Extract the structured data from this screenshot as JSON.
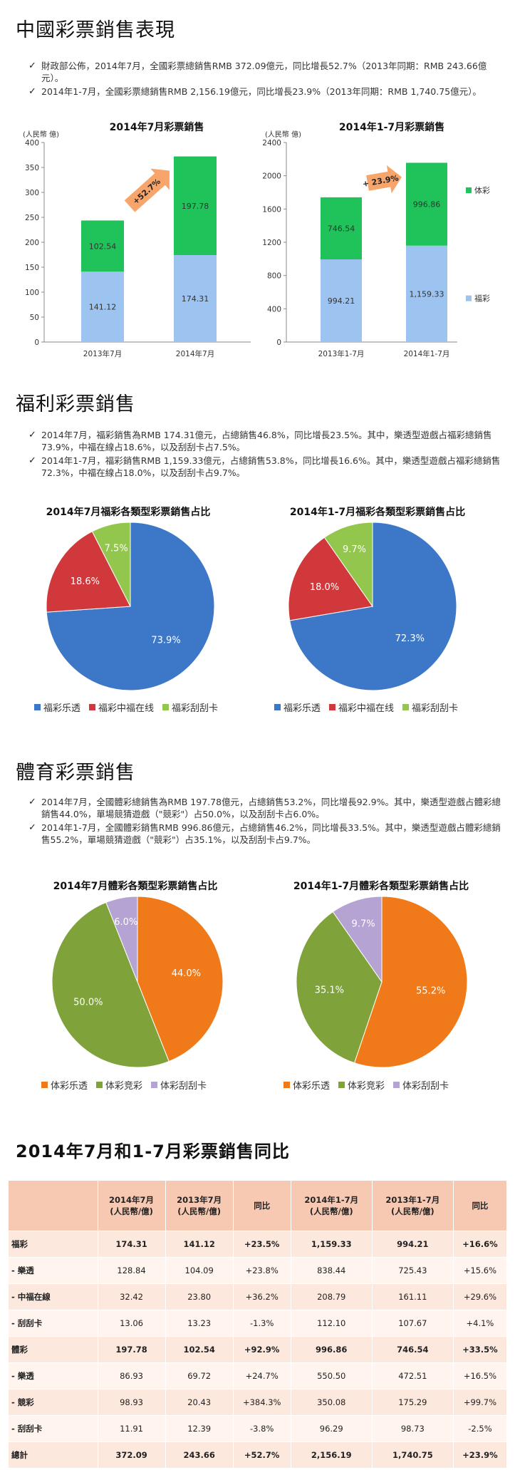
{
  "section1": {
    "title": "中國彩票銷售表現",
    "bullets": [
      "財政部公佈，2014年7月，全國彩票總銷售RMB 372.09億元，同比增長52.7%（2013年同期：RMB 243.66億元）。",
      "2014年1-7月，全國彩票總銷售RMB 2,156.19億元，同比增長23.9%（2013年同期：RMB 1,740.75億元）。"
    ]
  },
  "section2": {
    "title": "福利彩票銷售",
    "bullets": [
      "2014年7月，福彩銷售為RMB 174.31億元，占總銷售46.8%，同比增長23.5%。其中，樂透型遊戲占福彩總銷售73.9%，中福在線占18.6%，以及刮刮卡占7.5%。",
      "2014年1-7月，福彩銷售RMB 1,159.33億元，占總銷售53.8%，同比增長16.6%。其中，樂透型遊戲占福彩總銷售72.3%，中福在線占18.0%，以及刮刮卡占9.7%。"
    ]
  },
  "section3": {
    "title": "體育彩票銷售",
    "bullets": [
      "2014年7月，全國體彩總銷售為RMB 197.78億元，占總銷售53.2%，同比增長92.9%。其中，樂透型遊戲占體彩總銷售44.0%，單場競猜遊戲（\"競彩\"）占50.0%，以及刮刮卡占6.0%。",
      "2014年1-7月，全國體彩銷售RMB 996.86億元，占總銷售46.2%，同比增長33.5%。其中，樂透型遊戲占體彩總銷售55.2%，單場競猜遊戲（\"競彩\"）占35.1%，以及刮刮卡占9.7%。"
    ]
  },
  "section4": {
    "title": "2014年7月和1-7月彩票銷售同比"
  },
  "colors": {
    "welfare": "#9dc3f1",
    "sports": "#1fc35a",
    "arrow": "#f8a56b",
    "lotto_blue": "#3d78c8",
    "red": "#d0383b",
    "green": "#92c64c",
    "orange": "#f07a1a",
    "olive": "#7fa33a",
    "lavender": "#b5a3d3"
  },
  "chart_data": [
    {
      "type": "bar",
      "stacked": true,
      "title": "2014年7月彩票銷售",
      "ylabel": "(人民幣 億)",
      "ylim": [
        0,
        400
      ],
      "yticks": [
        "0",
        "50",
        "100",
        "150",
        "200",
        "250",
        "300",
        "350",
        "400"
      ],
      "categories": [
        "2013年7月",
        "2014年7月"
      ],
      "series": [
        {
          "values": [
            141.12,
            174.31
          ],
          "labels": [
            "141.12",
            "174.31"
          ]
        },
        {
          "values": [
            102.54,
            197.78
          ],
          "labels": [
            "102.54",
            "197.78"
          ]
        }
      ],
      "annotation": "+52.7%"
    },
    {
      "type": "bar",
      "stacked": true,
      "title": "2014年1-7月彩票銷售",
      "ylabel": "(人民幣 億)",
      "ylim": [
        0,
        2400
      ],
      "yticks": [
        "0",
        "400",
        "800",
        "1200",
        "1600",
        "2000",
        "2400"
      ],
      "categories": [
        "2013年1-7月",
        "2014年1-7月"
      ],
      "series": [
        {
          "name": "福彩",
          "values": [
            994.21,
            1159.33
          ],
          "labels": [
            "994.21",
            "1,159.33"
          ]
        },
        {
          "name": "体彩",
          "values": [
            746.54,
            996.86
          ],
          "labels": [
            "746.54",
            "996.86"
          ]
        }
      ],
      "annotation": "+ 23.9%",
      "legend": "right"
    },
    {
      "type": "pie",
      "title": "2014年7月福彩各類型彩票銷售占比",
      "slices": [
        {
          "name": "福彩乐透",
          "value": 73.9,
          "label": "73.9%"
        },
        {
          "name": "福彩中福在线",
          "value": 18.6,
          "label": "18.6%"
        },
        {
          "name": "福彩刮刮卡",
          "value": 7.5,
          "label": "7.5%"
        }
      ],
      "legend": "bottom"
    },
    {
      "type": "pie",
      "title": "2014年1-7月福彩各類型彩票銷售占比",
      "slices": [
        {
          "name": "福彩乐透",
          "value": 72.3,
          "label": "72.3%"
        },
        {
          "name": "福彩中福在线",
          "value": 18.0,
          "label": "18.0%"
        },
        {
          "name": "福彩刮刮卡",
          "value": 9.7,
          "label": "9.7%"
        }
      ],
      "legend": "bottom"
    },
    {
      "type": "pie",
      "title": "2014年7月體彩各類型彩票銷售占比",
      "slices": [
        {
          "name": "体彩乐透",
          "value": 44.0,
          "label": "44.0%"
        },
        {
          "name": "体彩竞彩",
          "value": 50.0,
          "label": "50.0%"
        },
        {
          "name": "体彩刮刮卡",
          "value": 6.0,
          "label": "6.0%"
        }
      ],
      "legend": "bottom"
    },
    {
      "type": "pie",
      "title": "2014年1-7月體彩各類型彩票銷售占比",
      "slices": [
        {
          "name": "体彩乐透",
          "value": 55.2,
          "label": "55.2%"
        },
        {
          "name": "体彩竞彩",
          "value": 35.1,
          "label": "35.1%"
        },
        {
          "name": "体彩刮刮卡",
          "value": 9.7,
          "label": "9.7%"
        }
      ],
      "legend": "bottom"
    },
    {
      "type": "table",
      "header": [
        "",
        "2014年7月\n(人民幣/億)",
        "2013年7月\n(人民幣/億)",
        "同比",
        "2014年1-7月\n(人民幣/億)",
        "2013年1-7月\n(人民幣/億)",
        "同比"
      ],
      "rows": [
        {
          "label": "福彩",
          "bold": true,
          "cells": [
            "174.31",
            "141.12",
            "+23.5%",
            "1,159.33",
            "994.21",
            "+16.6%"
          ]
        },
        {
          "label": "- 樂透",
          "bold": false,
          "cells": [
            "128.84",
            "104.09",
            "+23.8%",
            "838.44",
            "725.43",
            "+15.6%"
          ]
        },
        {
          "label": "- 中福在線",
          "bold": false,
          "cells": [
            "32.42",
            "23.80",
            "+36.2%",
            "208.79",
            "161.11",
            "+29.6%"
          ]
        },
        {
          "label": "- 刮刮卡",
          "bold": false,
          "cells": [
            "13.06",
            "13.23",
            "-1.3%",
            "112.10",
            "107.67",
            "+4.1%"
          ]
        },
        {
          "label": "體彩",
          "bold": true,
          "cells": [
            "197.78",
            "102.54",
            "+92.9%",
            "996.86",
            "746.54",
            "+33.5%"
          ]
        },
        {
          "label": "- 樂透",
          "bold": false,
          "cells": [
            "86.93",
            "69.72",
            "+24.7%",
            "550.50",
            "472.51",
            "+16.5%"
          ]
        },
        {
          "label": "- 競彩",
          "bold": false,
          "cells": [
            "98.93",
            "20.43",
            "+384.3%",
            "350.08",
            "175.29",
            "+99.7%"
          ]
        },
        {
          "label": "- 刮刮卡",
          "bold": false,
          "cells": [
            "11.91",
            "12.39",
            "-3.8%",
            "96.29",
            "98.73",
            "-2.5%"
          ]
        },
        {
          "label": "總計",
          "bold": true,
          "cells": [
            "372.09",
            "243.66",
            "+52.7%",
            "2,156.19",
            "1,740.75",
            "+23.9%"
          ]
        }
      ]
    }
  ]
}
